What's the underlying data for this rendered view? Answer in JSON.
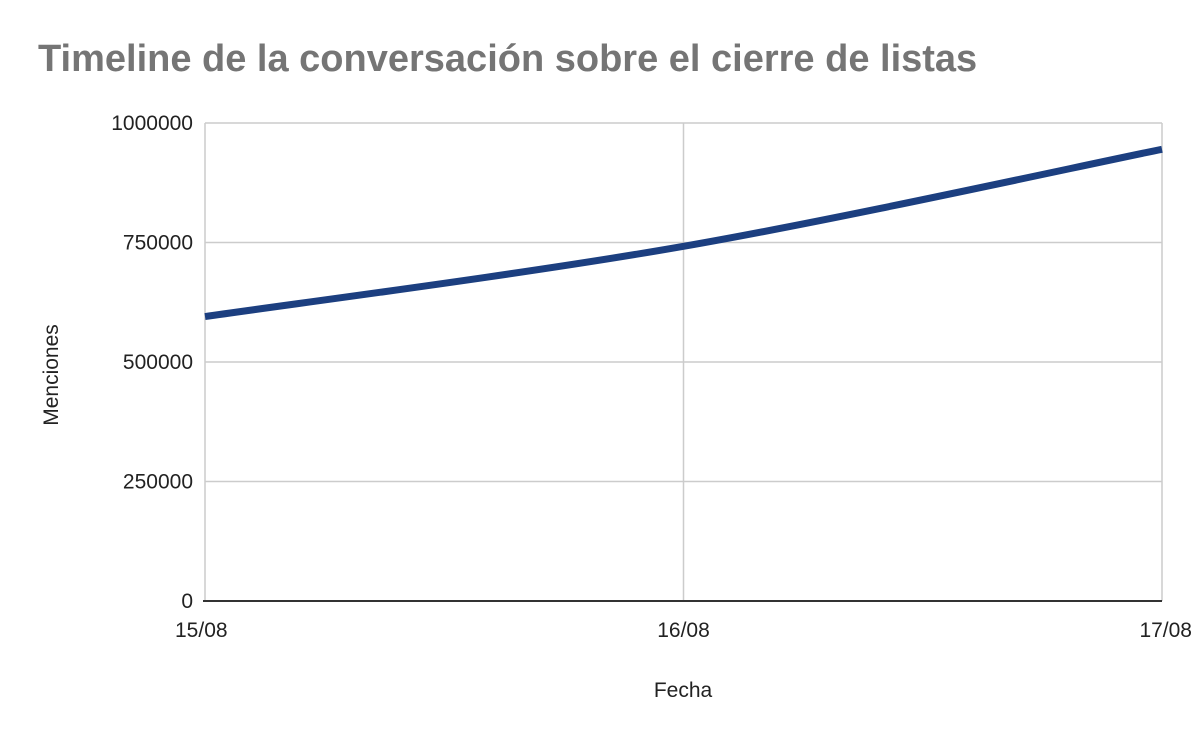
{
  "chart_data": {
    "type": "line",
    "title": "Timeline de la conversación sobre el cierre de listas",
    "xlabel": "Fecha",
    "ylabel": "Menciones",
    "categories": [
      "15/08",
      "16/08",
      "17/08"
    ],
    "series": [
      {
        "values": [
          595000,
          742000,
          945000
        ]
      }
    ],
    "ylim": [
      0,
      1000000
    ],
    "yticks": [
      "0",
      "250000",
      "500000",
      "750000",
      "1000000"
    ],
    "smooth": true,
    "grid": true,
    "legend": "none",
    "colors": {
      "line": "#1c3f80",
      "grid": "#cccccc",
      "axis": "#333333"
    }
  }
}
